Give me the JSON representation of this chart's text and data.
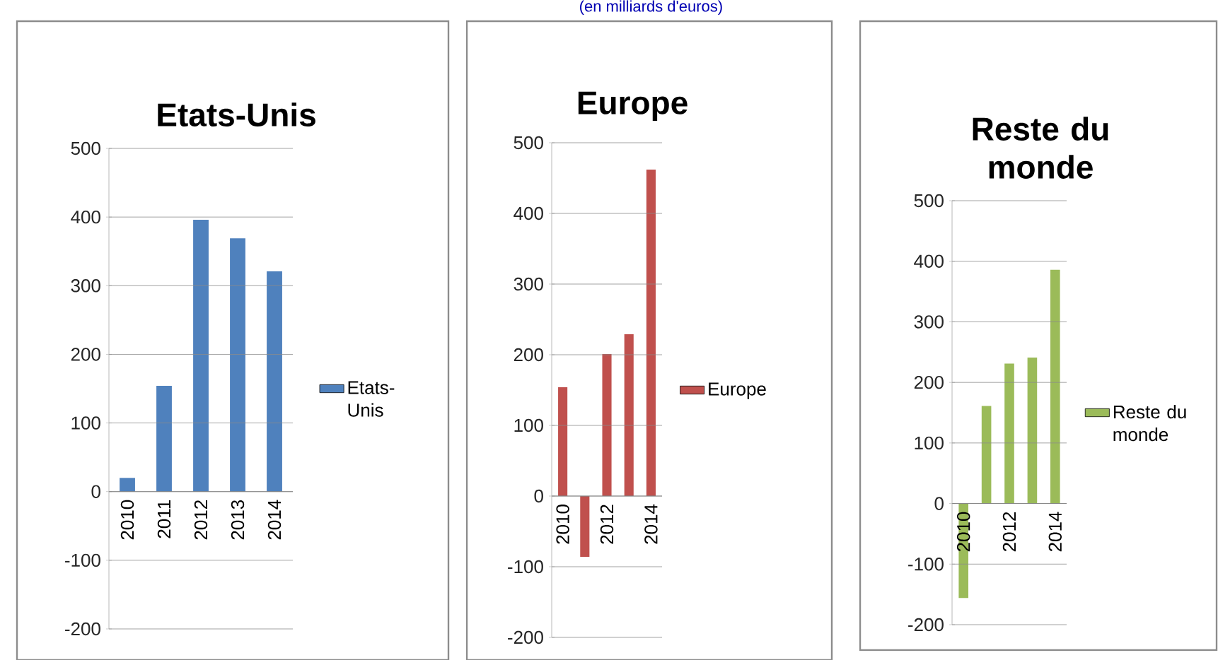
{
  "chart_data": [
    {
      "type": "bar",
      "title": "Etats-Unis",
      "categories": [
        "2010",
        "2011",
        "2012",
        "2013",
        "2014"
      ],
      "series": [
        {
          "name": "Etats-Unis",
          "color": "#4f81bd",
          "values": [
            20,
            154,
            396,
            369,
            321
          ]
        }
      ],
      "ylim": [
        -200,
        500
      ],
      "yticks": [
        -200,
        -100,
        0,
        100,
        200,
        300,
        400,
        500
      ],
      "grid": "y",
      "legend": "right"
    },
    {
      "type": "bar",
      "title": "Europe",
      "annotations": [
        "(en milliards d'euros)"
      ],
      "categories": [
        "2010",
        null,
        "2012",
        null,
        "2014"
      ],
      "series": [
        {
          "name": "Europe",
          "color": "#c0504d",
          "values": [
            154,
            -86,
            201,
            229,
            462
          ]
        }
      ],
      "ylim": [
        -200,
        500
      ],
      "yticks": [
        -200,
        -100,
        0,
        100,
        200,
        300,
        400,
        500
      ],
      "grid": "y",
      "legend": "right"
    },
    {
      "type": "bar",
      "title": "Reste du monde",
      "categories": [
        "2010",
        null,
        "2012",
        null,
        "2014"
      ],
      "series": [
        {
          "name": "Reste du monde",
          "color": "#9bbb59",
          "values": [
            -156,
            161,
            231,
            241,
            386
          ]
        }
      ],
      "ylim": [
        -200,
        500
      ],
      "yticks": [
        -200,
        -100,
        0,
        100,
        200,
        300,
        400,
        500
      ],
      "grid": "y",
      "legend": "right"
    }
  ]
}
